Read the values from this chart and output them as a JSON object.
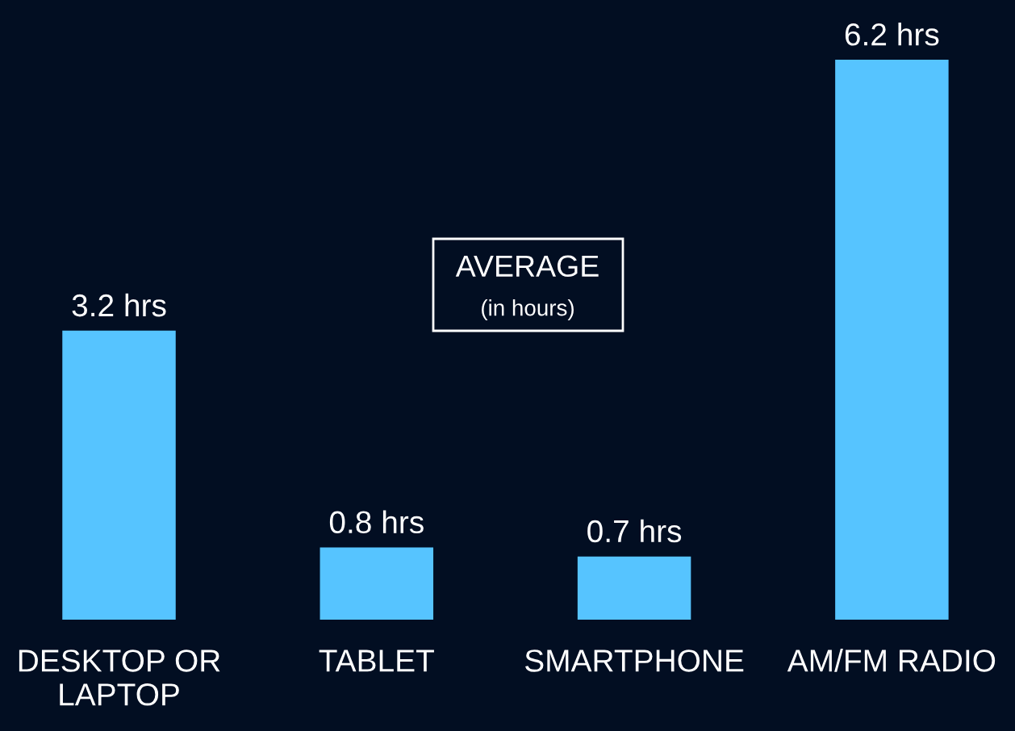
{
  "chart_data": {
    "type": "bar",
    "title": "AVERAGE",
    "subtitle": "(in hours)",
    "categories": [
      "DESKTOP OR\nLAPTOP",
      "TABLET",
      "SMARTPHONE",
      "AM/FM RADIO"
    ],
    "values": [
      3.2,
      0.8,
      0.7,
      6.2
    ],
    "color": "#56c4ff",
    "value_labels": [
      "3.2 hrs",
      "0.8 hrs",
      "0.7 hrs",
      "6.2 hrs"
    ]
  }
}
